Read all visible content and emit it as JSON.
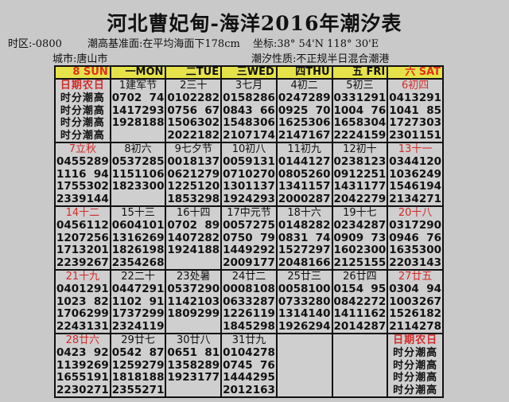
{
  "title": "河北曹妃甸-海洋2016年潮汐表",
  "timezone": "时区:-0800",
  "datum": "潮高基准面:在平均海面下178cm",
  "coords": "坐标:38° 54'N  118° 30'E",
  "city": "城市:唐山市",
  "tide_type": "潮汐性质:不正规半日混合潮港",
  "headers": [
    {
      "label": "8  SUN",
      "red": true
    },
    {
      "label": "一MON"
    },
    {
      "label": "二TUE"
    },
    {
      "label": "三WED"
    },
    {
      "label": "四THU"
    },
    {
      "label": "五 FRI"
    },
    {
      "label": "六 SAT",
      "red": true
    }
  ],
  "legend": {
    "head": "日期农日",
    "row": "时分潮高"
  },
  "weeks": [
    [
      {
        "legend": true
      },
      {
        "label": "1建军节",
        "tides": [
          [
            "0702",
            "74"
          ],
          [
            "1417",
            "293"
          ],
          [
            "1928",
            "188"
          ]
        ]
      },
      {
        "label": "2三十",
        "tides": [
          [
            "0102",
            "282"
          ],
          [
            "0756",
            "67"
          ],
          [
            "1506",
            "302"
          ],
          [
            "2022",
            "182"
          ]
        ]
      },
      {
        "label": "3七月",
        "tides": [
          [
            "0158",
            "286"
          ],
          [
            "0843",
            "66"
          ],
          [
            "1548",
            "306"
          ],
          [
            "2107",
            "174"
          ]
        ]
      },
      {
        "label": "4初二",
        "tides": [
          [
            "0247",
            "289"
          ],
          [
            "0925",
            "70"
          ],
          [
            "1625",
            "306"
          ],
          [
            "2147",
            "167"
          ]
        ]
      },
      {
        "label": "5初三",
        "tides": [
          [
            "0331",
            "291"
          ],
          [
            "1004",
            "76"
          ],
          [
            "1658",
            "304"
          ],
          [
            "2224",
            "159"
          ]
        ]
      },
      {
        "label": "6初四",
        "red": true,
        "tides": [
          [
            "0413",
            "291"
          ],
          [
            "1041",
            "85"
          ],
          [
            "1727",
            "303"
          ],
          [
            "2301",
            "151"
          ]
        ]
      }
    ],
    [
      {
        "label": "7立秋",
        "red": true,
        "tides": [
          [
            "0455",
            "289"
          ],
          [
            "1116",
            "94"
          ],
          [
            "1755",
            "302"
          ],
          [
            "2339",
            "144"
          ]
        ]
      },
      {
        "label": "8初六",
        "tides": [
          [
            "0537",
            "285"
          ],
          [
            "1151",
            "106"
          ],
          [
            "1823",
            "300"
          ]
        ]
      },
      {
        "label": "9七夕节",
        "tides": [
          [
            "0018",
            "137"
          ],
          [
            "0621",
            "279"
          ],
          [
            "1225",
            "120"
          ],
          [
            "1853",
            "298"
          ]
        ]
      },
      {
        "label": "10初八",
        "tides": [
          [
            "0059",
            "131"
          ],
          [
            "0710",
            "270"
          ],
          [
            "1301",
            "137"
          ],
          [
            "1924",
            "293"
          ]
        ]
      },
      {
        "label": "11初九",
        "tides": [
          [
            "0144",
            "127"
          ],
          [
            "0805",
            "260"
          ],
          [
            "1341",
            "157"
          ],
          [
            "2000",
            "287"
          ]
        ]
      },
      {
        "label": "12初十",
        "tides": [
          [
            "0238",
            "123"
          ],
          [
            "0912",
            "251"
          ],
          [
            "1431",
            "177"
          ],
          [
            "2042",
            "279"
          ]
        ]
      },
      {
        "label": "13十一",
        "red": true,
        "tides": [
          [
            "0344",
            "120"
          ],
          [
            "1036",
            "249"
          ],
          [
            "1546",
            "194"
          ],
          [
            "2134",
            "271"
          ]
        ]
      }
    ],
    [
      {
        "label": "14十二",
        "red": true,
        "tides": [
          [
            "0456",
            "112"
          ],
          [
            "1207",
            "256"
          ],
          [
            "1713",
            "201"
          ],
          [
            "2239",
            "267"
          ]
        ]
      },
      {
        "label": "15十三",
        "tides": [
          [
            "0604",
            "101"
          ],
          [
            "1316",
            "269"
          ],
          [
            "1826",
            "198"
          ],
          [
            "2354",
            "268"
          ]
        ]
      },
      {
        "label": "16十四",
        "tides": [
          [
            "0702",
            "89"
          ],
          [
            "1407",
            "282"
          ],
          [
            "1924",
            "188"
          ]
        ]
      },
      {
        "label": "17中元节",
        "tides": [
          [
            "0057",
            "275"
          ],
          [
            "0750",
            "79"
          ],
          [
            "1449",
            "292"
          ],
          [
            "2009",
            "177"
          ]
        ]
      },
      {
        "label": "18十六",
        "tides": [
          [
            "0148",
            "282"
          ],
          [
            "0831",
            "74"
          ],
          [
            "1527",
            "297"
          ],
          [
            "2048",
            "166"
          ]
        ]
      },
      {
        "label": "19十七",
        "tides": [
          [
            "0234",
            "287"
          ],
          [
            "0909",
            "73"
          ],
          [
            "1602",
            "300"
          ],
          [
            "2125",
            "155"
          ]
        ]
      },
      {
        "label": "20十八",
        "red": true,
        "tides": [
          [
            "0317",
            "290"
          ],
          [
            "0946",
            "76"
          ],
          [
            "1635",
            "300"
          ],
          [
            "2203",
            "143"
          ]
        ]
      }
    ],
    [
      {
        "label": "21十九",
        "red": true,
        "tides": [
          [
            "0401",
            "291"
          ],
          [
            "1023",
            "82"
          ],
          [
            "1706",
            "299"
          ],
          [
            "2243",
            "131"
          ]
        ]
      },
      {
        "label": "22二十",
        "tides": [
          [
            "0447",
            "291"
          ],
          [
            "1102",
            "91"
          ],
          [
            "1737",
            "299"
          ],
          [
            "2324",
            "119"
          ]
        ]
      },
      {
        "label": "23处暑",
        "tides": [
          [
            "0537",
            "290"
          ],
          [
            "1142",
            "103"
          ],
          [
            "1809",
            "299"
          ]
        ]
      },
      {
        "label": "24廿二",
        "tides": [
          [
            "0008",
            "108"
          ],
          [
            "0633",
            "287"
          ],
          [
            "1226",
            "119"
          ],
          [
            "1845",
            "298"
          ]
        ]
      },
      {
        "label": "25廿三",
        "tides": [
          [
            "0058",
            "100"
          ],
          [
            "0733",
            "280"
          ],
          [
            "1314",
            "140"
          ],
          [
            "1926",
            "294"
          ]
        ]
      },
      {
        "label": "26廿四",
        "tides": [
          [
            "0154",
            "95"
          ],
          [
            "0842",
            "272"
          ],
          [
            "1411",
            "162"
          ],
          [
            "2014",
            "287"
          ]
        ]
      },
      {
        "label": "27廿五",
        "red": true,
        "tides": [
          [
            "0304",
            "94"
          ],
          [
            "1003",
            "267"
          ],
          [
            "1526",
            "182"
          ],
          [
            "2114",
            "278"
          ]
        ]
      }
    ],
    [
      {
        "label": "28廿六",
        "red": true,
        "tides": [
          [
            "0423",
            "92"
          ],
          [
            "1139",
            "269"
          ],
          [
            "1655",
            "191"
          ],
          [
            "2230",
            "271"
          ]
        ]
      },
      {
        "label": "29廿七",
        "tides": [
          [
            "0542",
            "87"
          ],
          [
            "1259",
            "279"
          ],
          [
            "1818",
            "188"
          ],
          [
            "2355",
            "271"
          ]
        ]
      },
      {
        "label": "30廿八",
        "tides": [
          [
            "0651",
            "81"
          ],
          [
            "1358",
            "289"
          ],
          [
            "1923",
            "177"
          ]
        ]
      },
      {
        "label": "31廿九",
        "tides": [
          [
            "0104",
            "278"
          ],
          [
            "0745",
            "76"
          ],
          [
            "1444",
            "295"
          ],
          [
            "2012",
            "163"
          ]
        ]
      },
      {
        "empty": true
      },
      {
        "empty": true
      },
      {
        "legend": true
      }
    ]
  ]
}
